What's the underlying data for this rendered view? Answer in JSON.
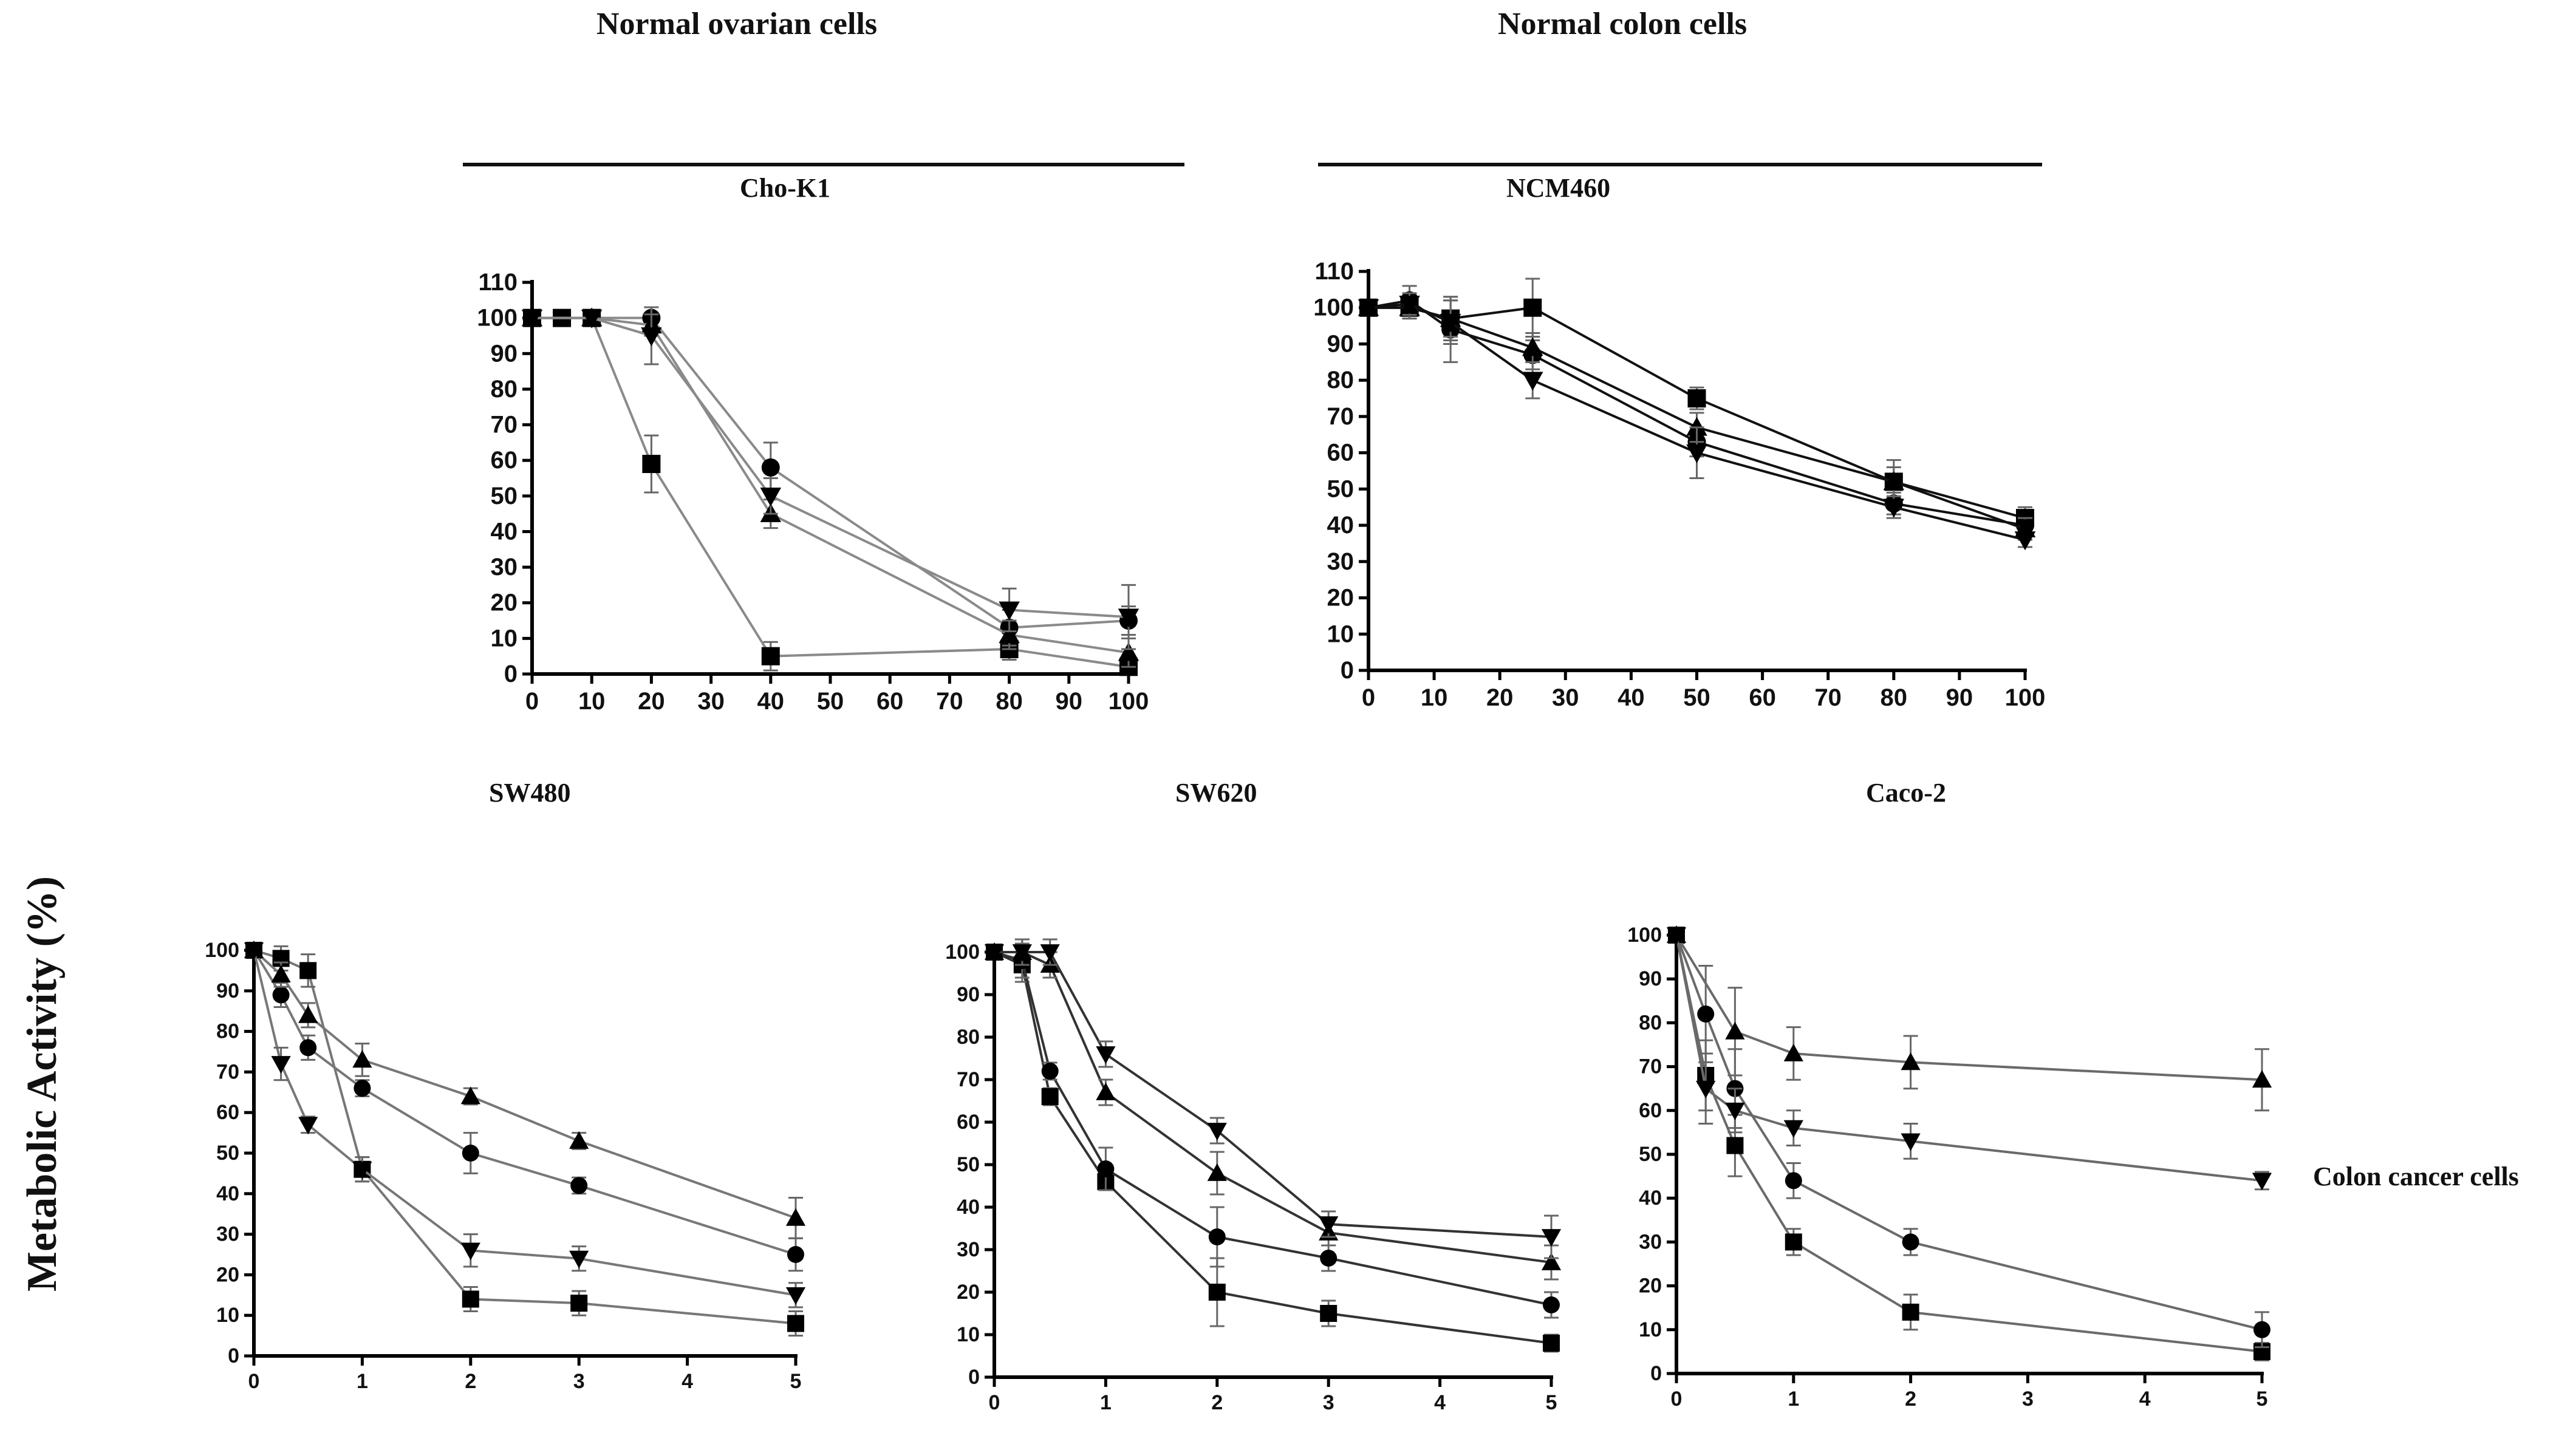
{
  "headers": {
    "group_left": "Normal ovarian cells",
    "group_right": "Normal colon cells",
    "side_label": "Colon cancer cells",
    "y_axis_label": "Metabolic Activity (%)"
  },
  "chart_data": [
    {
      "id": "chok1",
      "type": "line",
      "title": "Cho-K1",
      "xlabel": "",
      "ylabel": "Metabolic Activity (%)",
      "xlim": [
        0,
        100
      ],
      "ylim": [
        0,
        110
      ],
      "xticks": [
        0,
        10,
        20,
        30,
        40,
        50,
        60,
        70,
        80,
        90,
        100
      ],
      "yticks": [
        0,
        10,
        20,
        30,
        40,
        50,
        60,
        70,
        80,
        90,
        100,
        110
      ],
      "line_color": "#8a8a8a",
      "series": [
        {
          "name": "square",
          "marker": "square",
          "x": [
            0,
            5,
            10,
            20,
            40,
            80,
            100
          ],
          "y": [
            100,
            100,
            100,
            59,
            5,
            7,
            2
          ],
          "err": [
            0,
            0,
            0,
            8,
            4,
            3,
            2
          ]
        },
        {
          "name": "circle",
          "marker": "circle",
          "x": [
            0,
            10,
            20,
            40,
            80,
            100
          ],
          "y": [
            100,
            100,
            100,
            58,
            13,
            15
          ],
          "err": [
            0,
            0,
            3,
            7,
            5,
            4
          ]
        },
        {
          "name": "triangle-up",
          "marker": "triangle-up",
          "x": [
            0,
            10,
            20,
            40,
            80,
            100
          ],
          "y": [
            100,
            100,
            98,
            45,
            11,
            6
          ],
          "err": [
            0,
            0,
            3,
            4,
            4,
            4
          ]
        },
        {
          "name": "triangle-down",
          "marker": "triangle-down",
          "x": [
            0,
            10,
            20,
            40,
            80,
            100
          ],
          "y": [
            100,
            100,
            95,
            50,
            18,
            16
          ],
          "err": [
            0,
            0,
            8,
            5,
            6,
            9
          ]
        }
      ]
    },
    {
      "id": "ncm460",
      "type": "line",
      "title": "NCM460",
      "xlabel": "",
      "ylabel": "Metabolic Activity (%)",
      "xlim": [
        0,
        100
      ],
      "ylim": [
        0,
        110
      ],
      "xticks": [
        0,
        10,
        20,
        30,
        40,
        50,
        60,
        70,
        80,
        90,
        100
      ],
      "yticks": [
        0,
        10,
        20,
        30,
        40,
        50,
        60,
        70,
        80,
        90,
        100,
        110
      ],
      "line_color": "#111111",
      "series": [
        {
          "name": "square",
          "marker": "square",
          "x": [
            0,
            6.25,
            12.5,
            25,
            50,
            80,
            100
          ],
          "y": [
            100,
            100,
            97,
            100,
            75,
            52,
            42
          ],
          "err": [
            0,
            3,
            6,
            8,
            3,
            6,
            3
          ]
        },
        {
          "name": "circle",
          "marker": "circle",
          "x": [
            0,
            6.25,
            12.5,
            25,
            50,
            80,
            100
          ],
          "y": [
            100,
            102,
            94,
            87,
            63,
            46,
            40
          ],
          "err": [
            0,
            4,
            9,
            4,
            4,
            3,
            2
          ]
        },
        {
          "name": "triangle-up",
          "marker": "triangle-up",
          "x": [
            0,
            6.25,
            12.5,
            25,
            50,
            80,
            100
          ],
          "y": [
            100,
            100,
            97,
            89,
            67,
            52,
            39
          ],
          "err": [
            0,
            3,
            5,
            4,
            4,
            4,
            3
          ]
        },
        {
          "name": "triangle-down",
          "marker": "triangle-down",
          "x": [
            0,
            6.25,
            12.5,
            25,
            50,
            80,
            100
          ],
          "y": [
            100,
            101,
            96,
            80,
            60,
            45,
            36
          ],
          "err": [
            0,
            3,
            6,
            5,
            7,
            3,
            2
          ]
        }
      ]
    },
    {
      "id": "sw480",
      "type": "line",
      "title": "SW480",
      "xlabel": "",
      "ylabel": "Metabolic Activity (%)",
      "xlim": [
        0,
        5
      ],
      "ylim": [
        0,
        100
      ],
      "xticks": [
        0,
        1,
        2,
        3,
        4,
        5
      ],
      "yticks": [
        0,
        10,
        20,
        30,
        40,
        50,
        60,
        70,
        80,
        90,
        100
      ],
      "line_color": "#777777",
      "series": [
        {
          "name": "square",
          "marker": "square",
          "x": [
            0,
            0.25,
            0.5,
            1,
            2,
            3,
            5
          ],
          "y": [
            100,
            98,
            95,
            46,
            14,
            13,
            8
          ],
          "err": [
            0,
            3,
            4,
            3,
            3,
            3,
            3
          ]
        },
        {
          "name": "circle",
          "marker": "circle",
          "x": [
            0,
            0.25,
            0.5,
            1,
            2,
            3,
            5
          ],
          "y": [
            100,
            89,
            76,
            66,
            50,
            42,
            25
          ],
          "err": [
            0,
            3,
            3,
            2,
            5,
            2,
            4
          ]
        },
        {
          "name": "triangle-up",
          "marker": "triangle-up",
          "x": [
            0,
            0.25,
            0.5,
            1,
            2,
            3,
            5
          ],
          "y": [
            100,
            94,
            84,
            73,
            64,
            53,
            34
          ],
          "err": [
            0,
            3,
            3,
            4,
            2,
            2,
            5
          ]
        },
        {
          "name": "triangle-down",
          "marker": "triangle-down",
          "x": [
            0,
            0.25,
            0.5,
            1,
            2,
            3,
            5
          ],
          "y": [
            100,
            72,
            57,
            46,
            26,
            24,
            15
          ],
          "err": [
            0,
            4,
            2,
            3,
            4,
            3,
            3
          ]
        }
      ]
    },
    {
      "id": "sw620",
      "type": "line",
      "title": "SW620",
      "xlabel": "",
      "ylabel": "Metabolic Activity (%)",
      "xlim": [
        0,
        5
      ],
      "ylim": [
        0,
        100
      ],
      "xticks": [
        0,
        1,
        2,
        3,
        4,
        5
      ],
      "yticks": [
        0,
        10,
        20,
        30,
        40,
        50,
        60,
        70,
        80,
        90,
        100
      ],
      "line_color": "#333333",
      "series": [
        {
          "name": "square",
          "marker": "square",
          "x": [
            0,
            0.25,
            0.5,
            1,
            2,
            3,
            5
          ],
          "y": [
            100,
            97,
            66,
            46,
            20,
            15,
            8
          ],
          "err": [
            0,
            4,
            2,
            2,
            8,
            3,
            2
          ]
        },
        {
          "name": "circle",
          "marker": "circle",
          "x": [
            0,
            0.25,
            0.5,
            1,
            2,
            3,
            5
          ],
          "y": [
            100,
            98,
            72,
            49,
            33,
            28,
            17
          ],
          "err": [
            0,
            4,
            2,
            5,
            7,
            3,
            3
          ]
        },
        {
          "name": "triangle-up",
          "marker": "triangle-up",
          "x": [
            0,
            0.25,
            0.5,
            1,
            2,
            3,
            5
          ],
          "y": [
            100,
            100,
            97,
            67,
            48,
            34,
            27
          ],
          "err": [
            0,
            3,
            3,
            3,
            5,
            3,
            4
          ]
        },
        {
          "name": "triangle-down",
          "marker": "triangle-down",
          "x": [
            0,
            0.25,
            0.5,
            1,
            2,
            3,
            5
          ],
          "y": [
            100,
            100,
            100,
            76,
            58,
            36,
            33
          ],
          "err": [
            0,
            3,
            3,
            3,
            3,
            3,
            5
          ]
        }
      ]
    },
    {
      "id": "caco2",
      "type": "line",
      "title": "Caco-2",
      "xlabel": "",
      "ylabel": "Metabolic Activity (%)",
      "xlim": [
        0,
        5
      ],
      "ylim": [
        0,
        100
      ],
      "xticks": [
        0,
        1,
        2,
        3,
        4,
        5
      ],
      "yticks": [
        0,
        10,
        20,
        30,
        40,
        50,
        60,
        70,
        80,
        90,
        100
      ],
      "line_color": "#6a6a6a",
      "series": [
        {
          "name": "square",
          "marker": "square",
          "x": [
            0,
            0.25,
            0.5,
            1,
            2,
            5
          ],
          "y": [
            100,
            68,
            52,
            30,
            14,
            5
          ],
          "err": [
            0,
            8,
            7,
            3,
            4,
            2
          ]
        },
        {
          "name": "circle",
          "marker": "circle",
          "x": [
            0,
            0.25,
            0.5,
            1,
            2,
            5
          ],
          "y": [
            100,
            82,
            65,
            44,
            30,
            10
          ],
          "err": [
            0,
            11,
            9,
            4,
            3,
            4
          ]
        },
        {
          "name": "triangle-up",
          "marker": "triangle-up",
          "x": [
            0,
            0.5,
            1,
            2,
            5
          ],
          "y": [
            100,
            78,
            73,
            71,
            67
          ],
          "err": [
            0,
            10,
            6,
            6,
            7
          ]
        },
        {
          "name": "triangle-down",
          "marker": "triangle-down",
          "x": [
            0,
            0.25,
            0.5,
            1,
            2,
            5
          ],
          "y": [
            100,
            65,
            60,
            56,
            53,
            44
          ],
          "err": [
            0,
            8,
            5,
            4,
            4,
            2
          ]
        }
      ]
    }
  ]
}
